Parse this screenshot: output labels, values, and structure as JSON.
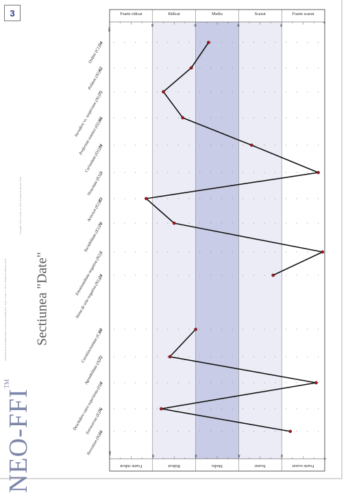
{
  "page_number": "3",
  "title": {
    "brand": "NEO-FFI",
    "tm": "TM",
    "section": "Sectiunea \"Date\""
  },
  "copyright_lines": [
    "Inventarul de Personalitate NEO in Cinci Factori (NEO-FFI) · Paul T. Costa, Jr., Ph.D. & Robert R. McCrae, Ph.D.",
    "Copyright · Paul T. Costa, Jr., Ph.D. & Robert R. McCrae, Ph.D."
  ],
  "bands": [
    "Foarte ridicat",
    "Ridicat",
    "Mediu",
    "Scazut",
    "Foarte scazut"
  ],
  "scale_ticks": [
    "100",
    "80",
    "60",
    "40",
    "20",
    "0"
  ],
  "scales": [
    {
      "code": "N",
      "label": "Nevrotism (N)",
      "score": "16"
    },
    {
      "code": "E",
      "label": "Extraversie (E)",
      "score": "76"
    },
    {
      "code": "O",
      "label": "Deschidere catre experienta (O)",
      "score": "4"
    },
    {
      "code": "A",
      "label": "Agreabilitate (A)",
      "score": "72"
    },
    {
      "code": "C",
      "label": "Constiinciozitate (C)",
      "score": "60"
    },
    {
      "code": "SI",
      "label": "Stima de sine negativa (N1)",
      "score": "24"
    },
    {
      "code": "EM",
      "label": "Emotionalitate negativa (N2)",
      "score": "1"
    },
    {
      "code": "SO",
      "label": "Sociabilitate (E1)",
      "score": "70"
    },
    {
      "code": "AC",
      "label": "Activism (E2)",
      "score": "83"
    },
    {
      "code": "V",
      "label": "Vivacitate (E3)",
      "score": "3"
    },
    {
      "code": "CU",
      "label": "Curiozitate (O1)",
      "score": "34"
    },
    {
      "code": "PR",
      "label": "Preferinte estetice (O2)",
      "score": "66"
    },
    {
      "code": "NC",
      "label": "Incredere vs. suspiciune (A1)",
      "score": "75"
    },
    {
      "code": "PO",
      "label": "Politete (A2)",
      "score": "62"
    },
    {
      "code": "OR",
      "label": "Ordine (C1)",
      "score": "54"
    }
  ],
  "chart_data": {
    "type": "line",
    "orientation": "rotated-90",
    "x_axis": "percentile score",
    "x_range": [
      0,
      100
    ],
    "bands": [
      {
        "name": "Foarte ridicat",
        "range": [
          80,
          100
        ]
      },
      {
        "name": "Ridicat",
        "range": [
          60,
          80
        ]
      },
      {
        "name": "Mediu",
        "range": [
          40,
          60
        ]
      },
      {
        "name": "Scazut",
        "range": [
          20,
          40
        ]
      },
      {
        "name": "Foarte scazut",
        "range": [
          0,
          20
        ]
      }
    ],
    "profiles": [
      {
        "name": "domains",
        "labels": [
          "N",
          "E",
          "O",
          "A",
          "C"
        ],
        "values": [
          16,
          76,
          4,
          72,
          60
        ]
      },
      {
        "name": "facets",
        "labels": [
          "SI",
          "EM",
          "SO",
          "AC",
          "V",
          "CU",
          "PR",
          "NC",
          "PO",
          "OR"
        ],
        "values": [
          24,
          1,
          70,
          83,
          3,
          34,
          66,
          75,
          62,
          54
        ]
      }
    ]
  },
  "colors": {
    "band_light": "#ebecf5",
    "band_mid": "#c9cce6",
    "band_white": "#ffffff",
    "line": "#111111",
    "point": "#b3141b"
  }
}
